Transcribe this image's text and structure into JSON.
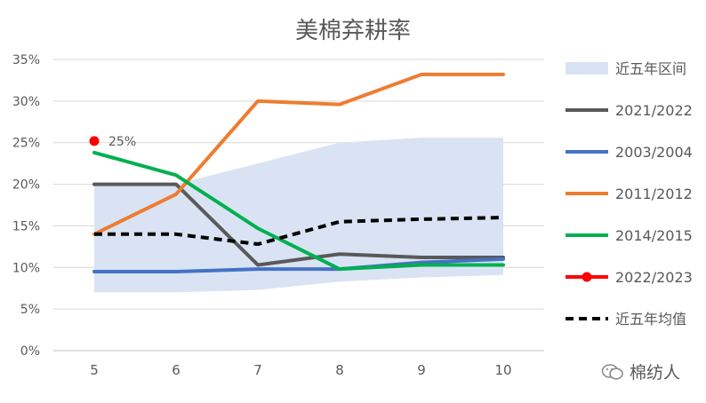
{
  "title": "美棉弃耕率",
  "watermark": "棉纺人",
  "colors": {
    "band": "#dae3f3",
    "grid": "#d9d9d9",
    "axis_text": "#595959",
    "s2021": "#595959",
    "s2003": "#4472c4",
    "s2011": "#ed7d31",
    "s2014": "#00b050",
    "s2022": "#ff0000",
    "avg": "#000000"
  },
  "chart_data": {
    "type": "line",
    "title": "美棉弃耕率",
    "x": [
      "5",
      "6",
      "7",
      "8",
      "9",
      "10"
    ],
    "ylim": [
      0,
      35
    ],
    "yticks": [
      "0%",
      "5%",
      "10%",
      "15%",
      "20%",
      "25%",
      "30%",
      "35%"
    ],
    "grid": "horizontal",
    "legend_position": "right",
    "band": {
      "name": "近五年区间",
      "lower": [
        7.0,
        7.0,
        7.3,
        8.3,
        8.8,
        9.1
      ],
      "upper": [
        20.0,
        20.0,
        22.5,
        25.0,
        25.6,
        25.6
      ]
    },
    "series": [
      {
        "name": "2021/2022",
        "key": "s2021",
        "style": "solid",
        "values": [
          20.0,
          20.0,
          10.3,
          11.6,
          11.2,
          11.2
        ]
      },
      {
        "name": "2003/2004",
        "key": "s2003",
        "style": "solid",
        "values": [
          9.5,
          9.5,
          9.8,
          9.8,
          10.6,
          11.0
        ]
      },
      {
        "name": "2011/2012",
        "key": "s2011",
        "style": "solid",
        "values": [
          14.0,
          18.8,
          30.0,
          29.6,
          33.2,
          33.2
        ]
      },
      {
        "name": "2014/2015",
        "key": "s2014",
        "style": "solid",
        "values": [
          23.8,
          21.1,
          14.7,
          9.8,
          10.3,
          10.3
        ]
      },
      {
        "name": "2022/2023",
        "key": "s2022",
        "style": "marker",
        "values": [
          25.2,
          null,
          null,
          null,
          null,
          null
        ],
        "label": "25%"
      },
      {
        "name": "近五年均值",
        "key": "avg",
        "style": "dashed",
        "values": [
          14.0,
          14.0,
          12.8,
          15.5,
          15.8,
          16.0
        ]
      }
    ]
  }
}
